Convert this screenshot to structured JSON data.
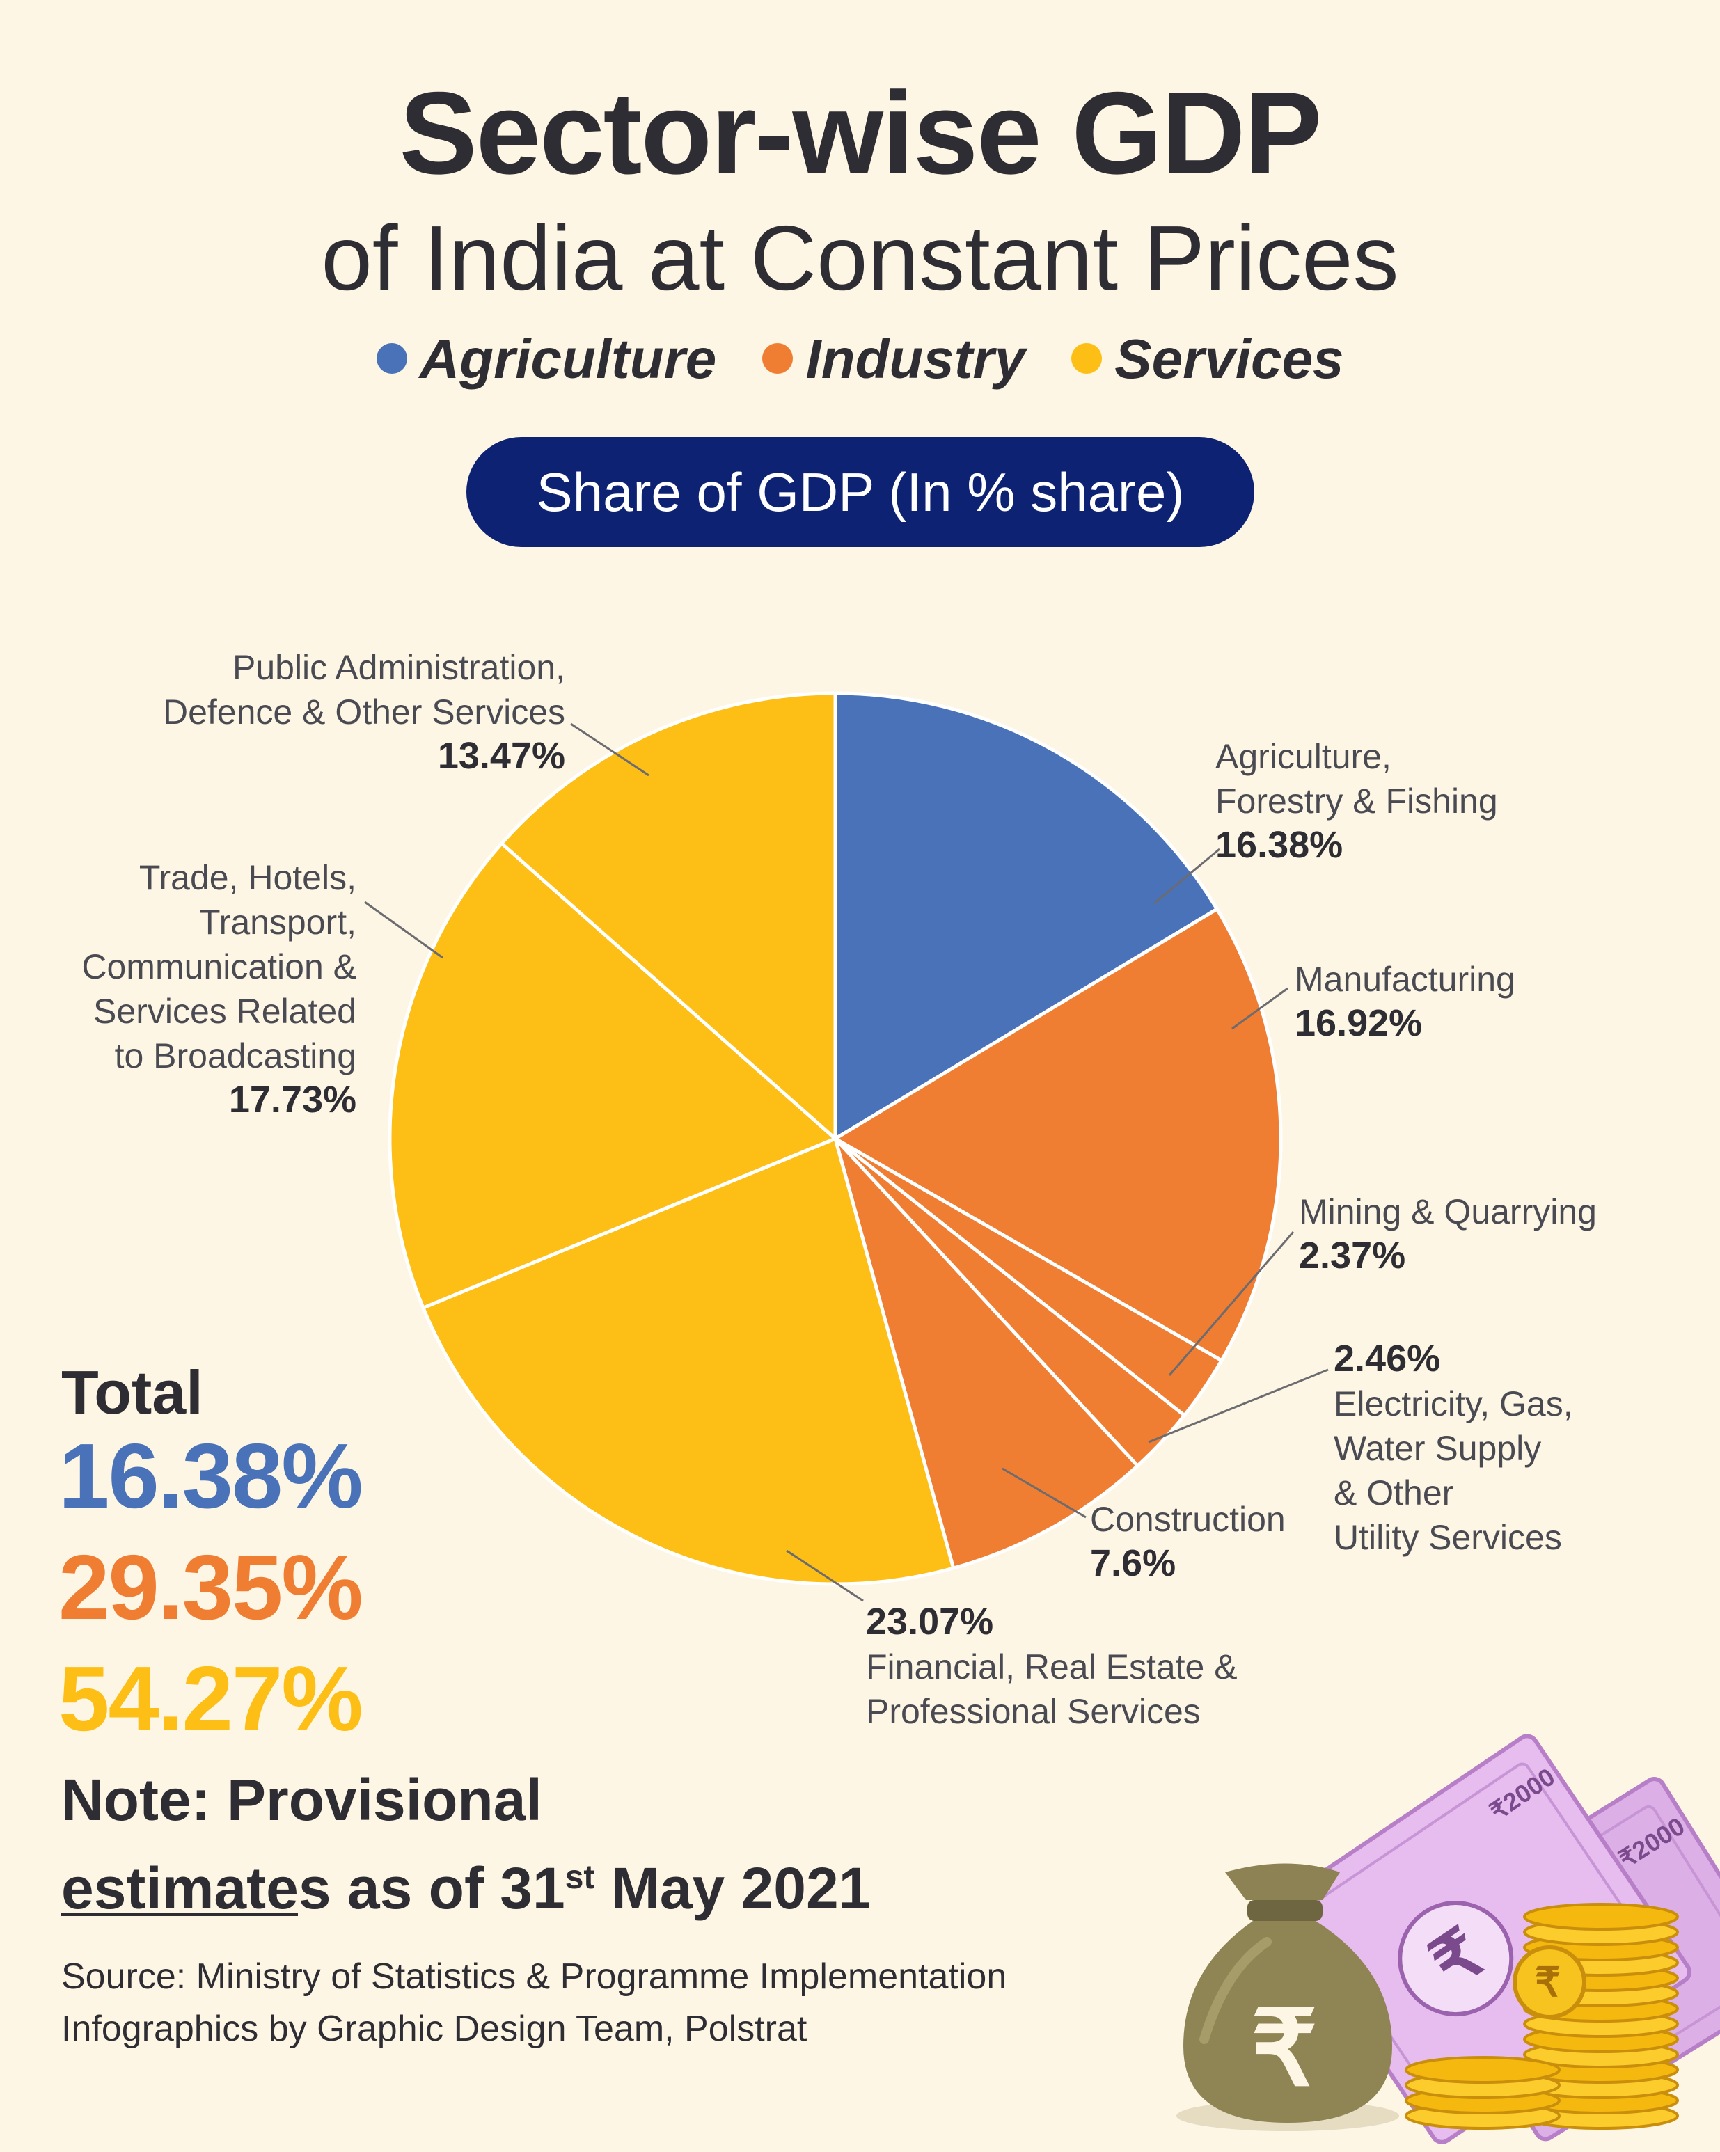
{
  "title": "Sector-wise GDP",
  "subtitle": "of India at Constant Prices",
  "legend": [
    {
      "label": "Agriculture",
      "color": "#4a72b8"
    },
    {
      "label": "Industry",
      "color": "#ef7d32"
    },
    {
      "label": "Services",
      "color": "#fdbf16"
    }
  ],
  "badge": "Share of GDP (In % share)",
  "chart_data": {
    "type": "pie",
    "title": "Share of GDP (In % share)",
    "slices": [
      {
        "label": "Agriculture, Forestry & Fishing",
        "label_lines": [
          "Agriculture,",
          "Forestry & Fishing"
        ],
        "value": 16.38,
        "value_text": "16.38%",
        "sector": "Agriculture",
        "color": "#4a72b8"
      },
      {
        "label": "Manufacturing",
        "label_lines": [
          "Manufacturing"
        ],
        "value": 16.92,
        "value_text": "16.92%",
        "sector": "Industry",
        "color": "#ef7d32"
      },
      {
        "label": "Mining & Quarrying",
        "label_lines": [
          "Mining & Quarrying"
        ],
        "value": 2.37,
        "value_text": "2.37%",
        "sector": "Industry",
        "color": "#ef7d32"
      },
      {
        "label": "Electricity, Gas, Water Supply & Other Utility Services",
        "label_lines": [
          "Electricity, Gas,",
          "Water Supply",
          "& Other",
          "Utility Services"
        ],
        "value": 2.46,
        "value_text": "2.46%",
        "sector": "Industry",
        "color": "#ef7d32"
      },
      {
        "label": "Construction",
        "label_lines": [
          "Construction"
        ],
        "value": 7.6,
        "value_text": "7.6%",
        "sector": "Industry",
        "color": "#ef7d32"
      },
      {
        "label": "Financial, Real Estate & Professional Services",
        "label_lines": [
          "Financial, Real Estate &",
          "Professional Services"
        ],
        "value": 23.07,
        "value_text": "23.07%",
        "sector": "Services",
        "color": "#fdbf16"
      },
      {
        "label": "Trade, Hotels, Transport, Communication & Services Related to Broadcasting",
        "label_lines": [
          "Trade, Hotels,",
          "Transport,",
          "Communication &",
          "Services Related",
          "to Broadcasting"
        ],
        "value": 17.73,
        "value_text": "17.73%",
        "sector": "Services",
        "color": "#fdbf16"
      },
      {
        "label": "Public Administration, Defence & Other Services",
        "label_lines": [
          "Public Administration,",
          "Defence & Other Services"
        ],
        "value": 13.47,
        "value_text": "13.47%",
        "sector": "Services",
        "color": "#fdbf16"
      }
    ]
  },
  "totals": {
    "heading": "Total",
    "agriculture": "16.38%",
    "industry": "29.35%",
    "services": "54.27%",
    "colors": {
      "agriculture": "#4a72b8",
      "industry": "#ef7d32",
      "services": "#fdbf16"
    }
  },
  "note": {
    "line1": "Note: Provisional",
    "line2_prefix": "estimates as of 31",
    "line2_sup": "st",
    "line2_suffix": " May 2021"
  },
  "source": "Source: Ministry of Statistics & Programme Implementation",
  "credit": "Infographics by Graphic Design Team, Polstrat",
  "decor": {
    "bag_symbol": "₹",
    "note_text": "₹2000"
  }
}
